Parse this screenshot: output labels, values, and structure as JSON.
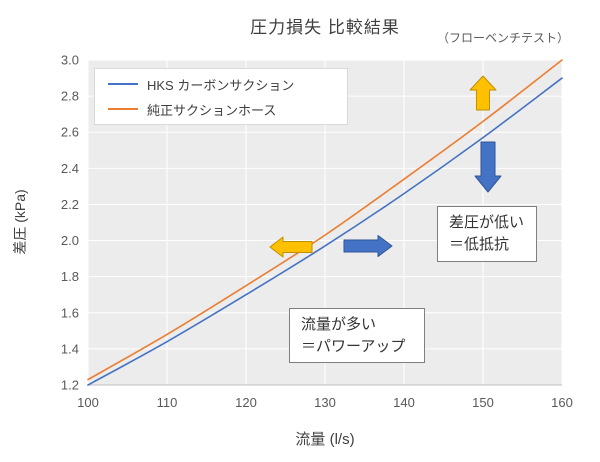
{
  "title": "圧力損失 比較結果",
  "subtitle": "（フローベンチテスト）",
  "axes": {
    "xlabel": "流量 (l/s)",
    "ylabel": "差圧 (kPa)"
  },
  "annotations": {
    "low_pressure": {
      "line1": "差圧が低い",
      "line2": "＝低抵抗"
    },
    "more_flow": {
      "line1": "流量が多い",
      "line2": "＝パワーアップ"
    }
  },
  "colors": {
    "hks_line": "#4472C4",
    "stock_line": "#ED7D31",
    "yellow_arrow_fill": "#FFC000",
    "yellow_arrow_stroke": "#BF9000",
    "blue_arrow_fill": "#4472C4",
    "blue_arrow_stroke": "#2F5597",
    "plot_background": "#ECECEC",
    "gridline": "#FFFFFF",
    "axis_line": "#BFBFBF"
  },
  "chart_data": {
    "type": "line",
    "title": "圧力損失 比較結果",
    "subtitle": "（フローベンチテスト）",
    "xlabel": "流量 (l/s)",
    "ylabel": "差圧 (kPa)",
    "x": [
      100,
      110,
      120,
      130,
      140,
      150,
      160
    ],
    "series": [
      {
        "name": "HKS カーボンサクション",
        "color": "#4472C4",
        "values": [
          1.2,
          1.44,
          1.7,
          1.97,
          2.26,
          2.57,
          2.9
        ]
      },
      {
        "name": "純正サクションホース",
        "color": "#ED7D31",
        "values": [
          1.23,
          1.48,
          1.75,
          2.03,
          2.34,
          2.66,
          3.0
        ]
      }
    ],
    "xlim": [
      100,
      160
    ],
    "ylim": [
      1.2,
      3.0
    ],
    "x_ticks": [
      100,
      110,
      120,
      130,
      140,
      150,
      160
    ],
    "x_tick_labels": [
      "100",
      "110",
      "120",
      "130",
      "140",
      "150",
      "160"
    ],
    "y_ticks": [
      1.2,
      1.4,
      1.6,
      1.8,
      2.0,
      2.2,
      2.4,
      2.6,
      2.8,
      3.0
    ],
    "y_tick_labels": [
      "1.2",
      "1.4",
      "1.6",
      "1.8",
      "2.0",
      "2.2",
      "2.4",
      "2.6",
      "2.8",
      "3.0"
    ],
    "grid": true,
    "legend_position": "top-left",
    "arrows": [
      {
        "direction": "up",
        "color_key": "yellow_arrow_fill",
        "near": [
          150,
          2.8
        ]
      },
      {
        "direction": "down",
        "color_key": "blue_arrow_fill",
        "near": [
          150,
          2.35
        ]
      },
      {
        "direction": "left",
        "color_key": "yellow_arrow_fill",
        "near": [
          124,
          1.95
        ]
      },
      {
        "direction": "right",
        "color_key": "blue_arrow_fill",
        "near": [
          134,
          1.95
        ]
      }
    ]
  }
}
